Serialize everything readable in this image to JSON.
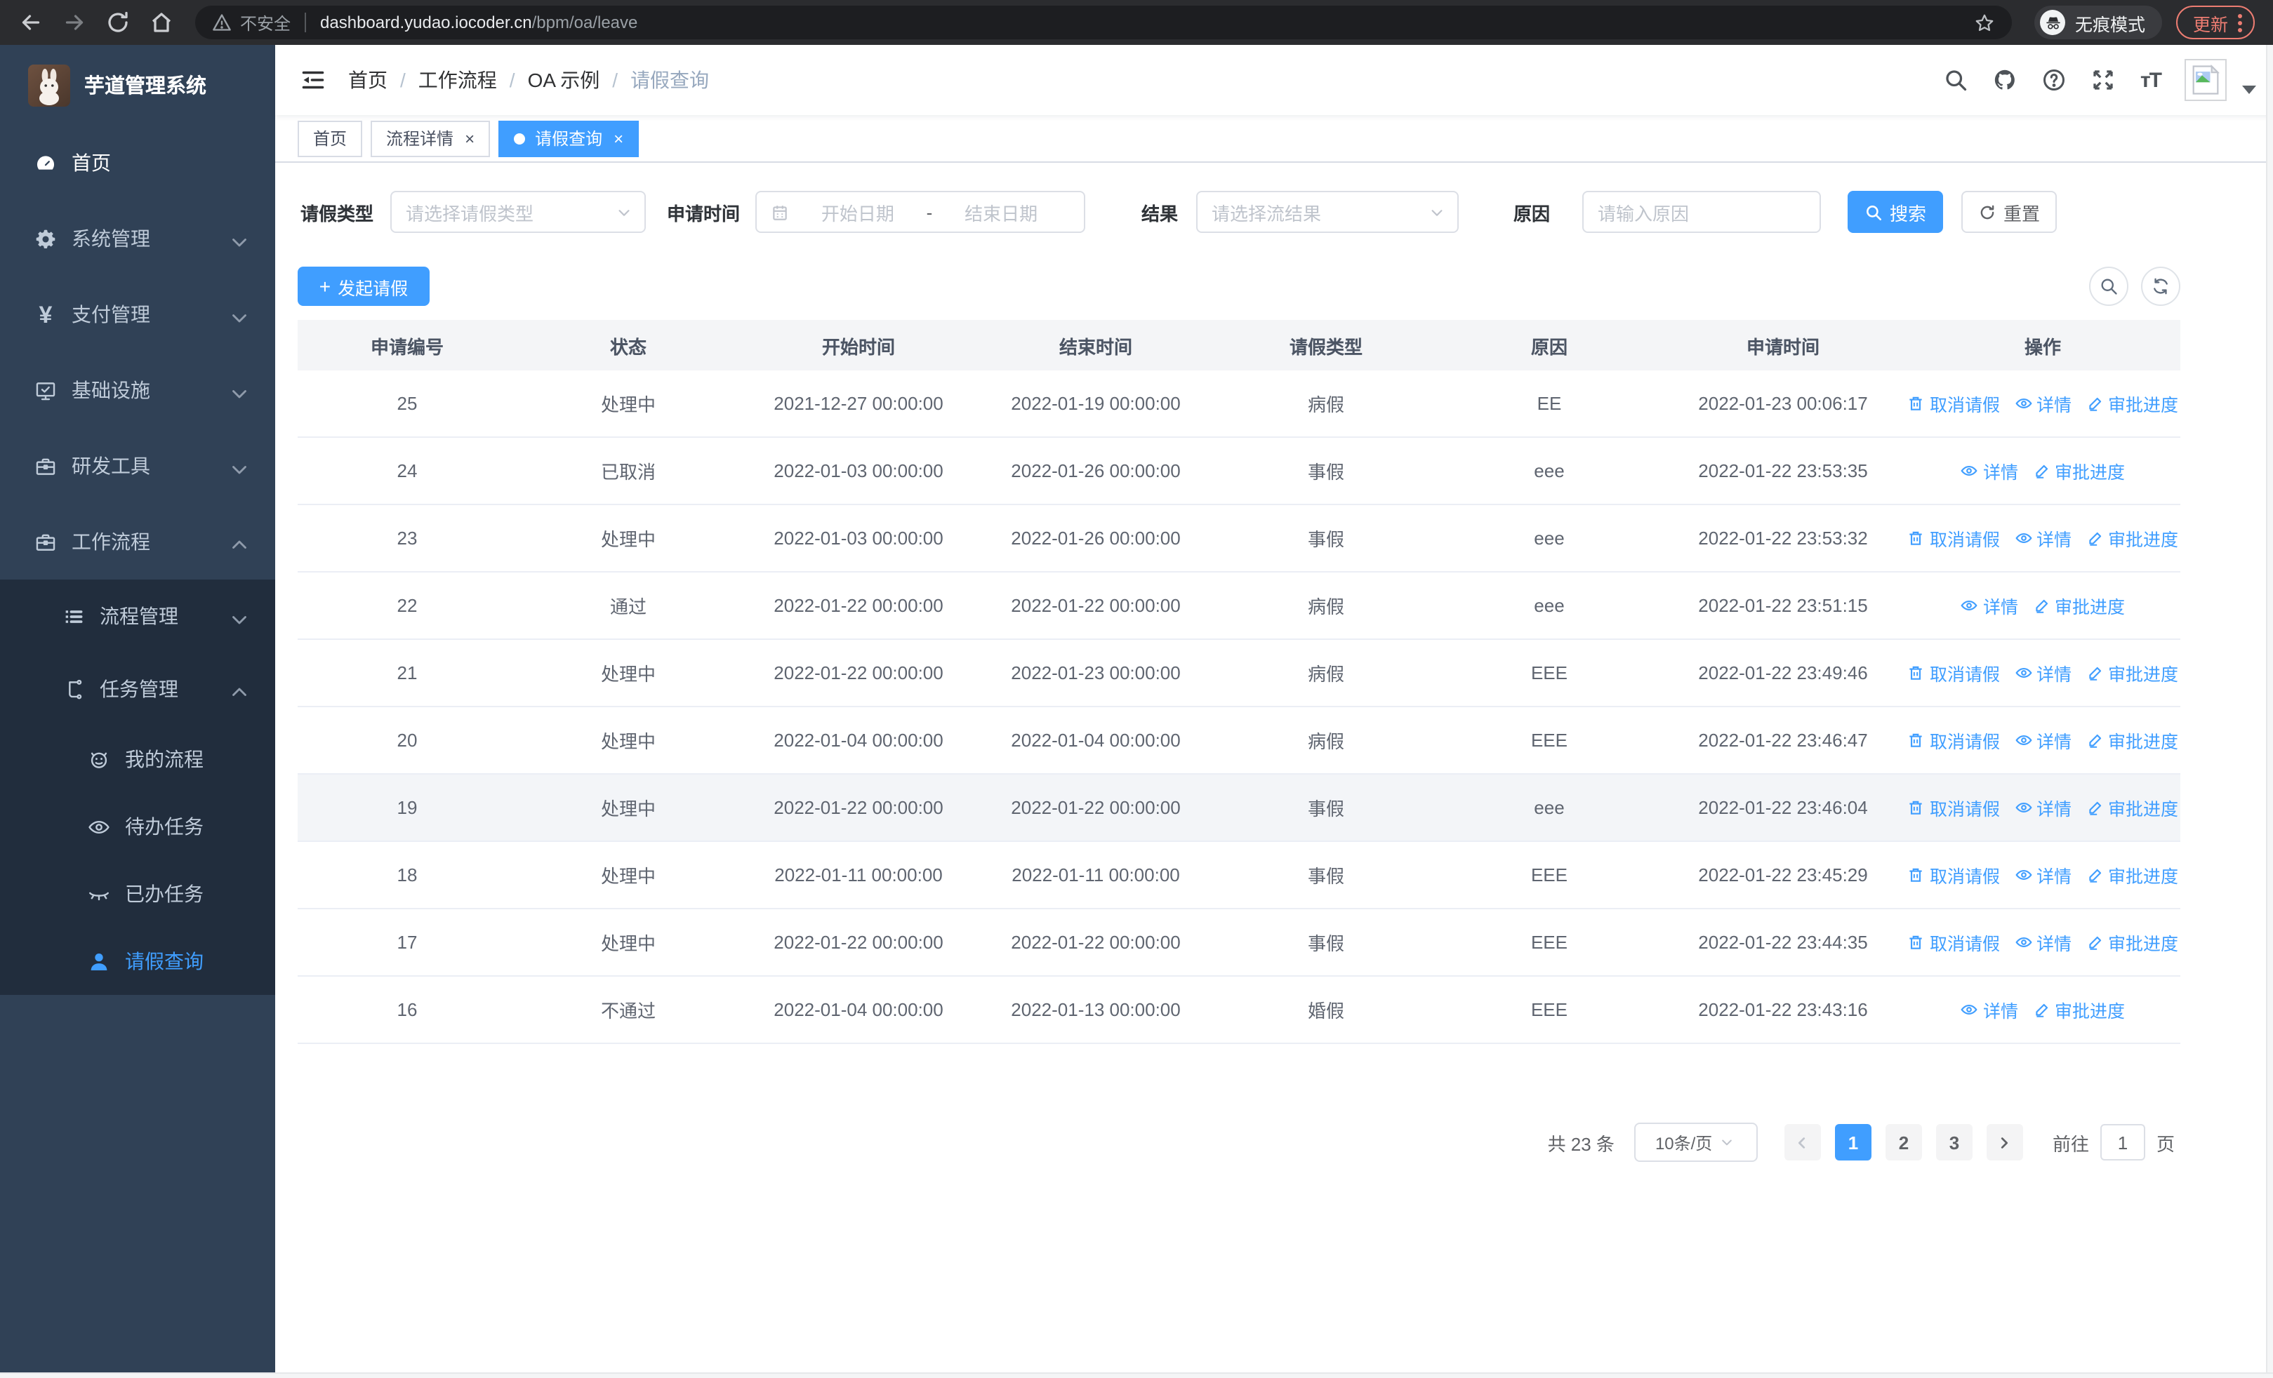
{
  "browser": {
    "security_label": "不安全",
    "url_host": "dashboard.yudao.iocoder.cn",
    "url_path": "/bpm/oa/leave",
    "incognito_label": "无痕模式",
    "update_label": "更新"
  },
  "sidebar": {
    "title": "芋道管理系统",
    "items": [
      {
        "label": "首页",
        "icon": "dashboard-icon",
        "level": 1,
        "arrow": null,
        "active": false,
        "home": true,
        "sub": false
      },
      {
        "label": "系统管理",
        "icon": "gear-icon",
        "level": 1,
        "arrow": "down",
        "active": false,
        "home": false,
        "sub": false
      },
      {
        "label": "支付管理",
        "icon": "yen-icon",
        "level": 1,
        "arrow": "down",
        "active": false,
        "home": false,
        "sub": false
      },
      {
        "label": "基础设施",
        "icon": "monitor-icon",
        "level": 1,
        "arrow": "down",
        "active": false,
        "home": false,
        "sub": false
      },
      {
        "label": "研发工具",
        "icon": "toolbox-icon",
        "level": 1,
        "arrow": "down",
        "active": false,
        "home": false,
        "sub": false
      },
      {
        "label": "工作流程",
        "icon": "workflow-icon",
        "level": 1,
        "arrow": "up",
        "active": false,
        "home": false,
        "sub": false
      },
      {
        "label": "流程管理",
        "icon": "list-icon",
        "level": 2,
        "arrow": "down",
        "active": false,
        "home": false,
        "sub": true
      },
      {
        "label": "任务管理",
        "icon": "tasks-icon",
        "level": 2,
        "arrow": "up",
        "active": false,
        "home": false,
        "sub": true
      },
      {
        "label": "我的流程",
        "icon": "robot-icon",
        "level": 3,
        "arrow": null,
        "active": false,
        "home": false,
        "sub": true
      },
      {
        "label": "待办任务",
        "icon": "eye-icon",
        "level": 3,
        "arrow": null,
        "active": false,
        "home": false,
        "sub": true
      },
      {
        "label": "已办任务",
        "icon": "eye-closed-icon",
        "level": 3,
        "arrow": null,
        "active": false,
        "home": false,
        "sub": true
      },
      {
        "label": "请假查询",
        "icon": "user-icon",
        "level": 3,
        "arrow": null,
        "active": true,
        "home": false,
        "sub": true
      }
    ]
  },
  "navbar": {
    "breadcrumb": [
      "首页",
      "工作流程",
      "OA 示例",
      "请假查询"
    ]
  },
  "tabs": [
    {
      "label": "首页",
      "closable": false,
      "active": false
    },
    {
      "label": "流程详情",
      "closable": true,
      "active": false
    },
    {
      "label": "请假查询",
      "closable": true,
      "active": true
    }
  ],
  "filters": {
    "type_label": "请假类型",
    "type_placeholder": "请选择请假类型",
    "time_label": "申请时间",
    "start_placeholder": "开始日期",
    "range_separator": "-",
    "end_placeholder": "结束日期",
    "result_label": "结果",
    "result_placeholder": "请选择流结果",
    "reason_label": "原因",
    "reason_placeholder": "请输入原因",
    "search_label": "搜索",
    "reset_label": "重置"
  },
  "toolbar": {
    "create_label": "发起请假"
  },
  "table": {
    "columns": [
      "申请编号",
      "状态",
      "开始时间",
      "结束时间",
      "请假类型",
      "原因",
      "申请时间",
      "操作"
    ],
    "action_labels": {
      "cancel": "取消请假",
      "detail": "详情",
      "progress": "审批进度"
    },
    "rows": [
      {
        "id": "25",
        "status": "处理中",
        "start": "2021-12-27 00:00:00",
        "end": "2022-01-19 00:00:00",
        "type": "病假",
        "reason": "EE",
        "applied": "2022-01-23 00:06:17",
        "actions": [
          "cancel",
          "detail",
          "progress"
        ],
        "highlighted": false
      },
      {
        "id": "24",
        "status": "已取消",
        "start": "2022-01-03 00:00:00",
        "end": "2022-01-26 00:00:00",
        "type": "事假",
        "reason": "eee",
        "applied": "2022-01-22 23:53:35",
        "actions": [
          "detail",
          "progress"
        ],
        "highlighted": false
      },
      {
        "id": "23",
        "status": "处理中",
        "start": "2022-01-03 00:00:00",
        "end": "2022-01-26 00:00:00",
        "type": "事假",
        "reason": "eee",
        "applied": "2022-01-22 23:53:32",
        "actions": [
          "cancel",
          "detail",
          "progress"
        ],
        "highlighted": false
      },
      {
        "id": "22",
        "status": "通过",
        "start": "2022-01-22 00:00:00",
        "end": "2022-01-22 00:00:00",
        "type": "病假",
        "reason": "eee",
        "applied": "2022-01-22 23:51:15",
        "actions": [
          "detail",
          "progress"
        ],
        "highlighted": false
      },
      {
        "id": "21",
        "status": "处理中",
        "start": "2022-01-22 00:00:00",
        "end": "2022-01-23 00:00:00",
        "type": "病假",
        "reason": "EEE",
        "applied": "2022-01-22 23:49:46",
        "actions": [
          "cancel",
          "detail",
          "progress"
        ],
        "highlighted": false
      },
      {
        "id": "20",
        "status": "处理中",
        "start": "2022-01-04 00:00:00",
        "end": "2022-01-04 00:00:00",
        "type": "病假",
        "reason": "EEE",
        "applied": "2022-01-22 23:46:47",
        "actions": [
          "cancel",
          "detail",
          "progress"
        ],
        "highlighted": false
      },
      {
        "id": "19",
        "status": "处理中",
        "start": "2022-01-22 00:00:00",
        "end": "2022-01-22 00:00:00",
        "type": "事假",
        "reason": "eee",
        "applied": "2022-01-22 23:46:04",
        "actions": [
          "cancel",
          "detail",
          "progress"
        ],
        "highlighted": true
      },
      {
        "id": "18",
        "status": "处理中",
        "start": "2022-01-11 00:00:00",
        "end": "2022-01-11 00:00:00",
        "type": "事假",
        "reason": "EEE",
        "applied": "2022-01-22 23:45:29",
        "actions": [
          "cancel",
          "detail",
          "progress"
        ],
        "highlighted": false
      },
      {
        "id": "17",
        "status": "处理中",
        "start": "2022-01-22 00:00:00",
        "end": "2022-01-22 00:00:00",
        "type": "事假",
        "reason": "EEE",
        "applied": "2022-01-22 23:44:35",
        "actions": [
          "cancel",
          "detail",
          "progress"
        ],
        "highlighted": false
      },
      {
        "id": "16",
        "status": "不通过",
        "start": "2022-01-04 00:00:00",
        "end": "2022-01-13 00:00:00",
        "type": "婚假",
        "reason": "EEE",
        "applied": "2022-01-22 23:43:16",
        "actions": [
          "detail",
          "progress"
        ],
        "highlighted": false
      }
    ]
  },
  "pagination": {
    "total_label": "共 23 条",
    "page_size": "10条/页",
    "pages": [
      "1",
      "2",
      "3"
    ],
    "active_page": "1",
    "goto_label": "前往",
    "goto_value": "1",
    "page_suffix": "页"
  },
  "colors": {
    "primary": "#409eff",
    "sidebar_bg": "#304156",
    "sidebar_sub_bg": "#212d3d",
    "update_accent": "#ed7d72"
  }
}
